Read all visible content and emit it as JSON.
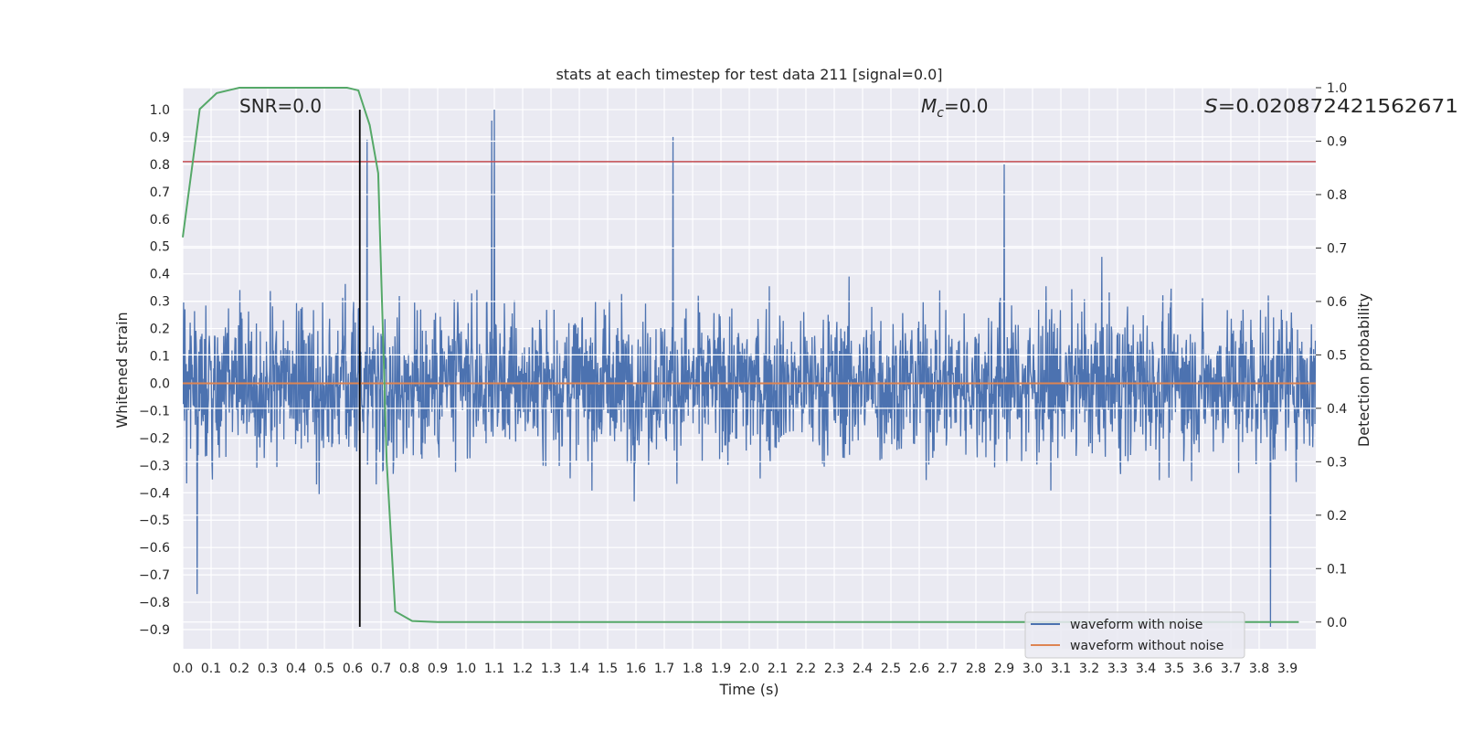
{
  "chart_data": {
    "type": "line",
    "title": "stats at each timestep for test data 211 [signal=0.0]",
    "xlabel": "Time (s)",
    "ylabel": "Whitened strain",
    "ylabel_right": "Detection probability",
    "xlim": [
      0.0,
      4.0
    ],
    "ylim": [
      -0.97,
      1.08
    ],
    "ylim_right": [
      -0.05,
      1.0
    ],
    "x_ticks": [
      0.0,
      0.1,
      0.2,
      0.3,
      0.4,
      0.5,
      0.6,
      0.7,
      0.8,
      0.9,
      1.0,
      1.1,
      1.2,
      1.3,
      1.4,
      1.5,
      1.6,
      1.7,
      1.8,
      1.9,
      2.0,
      2.1,
      2.2,
      2.3,
      2.4,
      2.5,
      2.6,
      2.7,
      2.8,
      2.9,
      3.0,
      3.1,
      3.2,
      3.3,
      3.4,
      3.5,
      3.6,
      3.7,
      3.8,
      3.9
    ],
    "x_tick_labels": [
      "0.0",
      "0.1",
      "0.2",
      "0.3",
      "0.4",
      "0.5",
      "0.6",
      "0.7",
      "0.8",
      "0.9",
      "1.0",
      "1.1",
      "1.2",
      "1.3",
      "1.4",
      "1.5",
      "1.6",
      "1.7",
      "1.8",
      "1.9",
      "2.0",
      "2.1",
      "2.2",
      "2.3",
      "2.4",
      "2.5",
      "2.6",
      "2.7",
      "2.8",
      "2.9",
      "3.0",
      "3.1",
      "3.2",
      "3.3",
      "3.4",
      "3.5",
      "3.6",
      "3.7",
      "3.8",
      "3.9"
    ],
    "y_ticks": [
      1.0,
      0.9,
      0.8,
      0.7,
      0.6,
      0.5,
      0.4,
      0.3,
      0.2,
      0.1,
      0.0,
      -0.1,
      -0.2,
      -0.3,
      -0.4,
      -0.5,
      -0.6,
      -0.7,
      -0.8,
      -0.9
    ],
    "y_tick_labels": [
      "1.0",
      "0.9",
      "0.8",
      "0.7",
      "0.6",
      "0.5",
      "0.4",
      "0.3",
      "0.2",
      "0.1",
      "0.0",
      "−0.1",
      "−0.2",
      "−0.3",
      "−0.4",
      "−0.5",
      "−0.6",
      "−0.7",
      "−0.8",
      "−0.9"
    ],
    "y_right_ticks": [
      1.0,
      0.9,
      0.8,
      0.7,
      0.6,
      0.5,
      0.4,
      0.3,
      0.2,
      0.1,
      0.0
    ],
    "y_right_tick_labels": [
      "1.0",
      "0.9",
      "0.8",
      "0.7",
      "0.6",
      "0.5",
      "0.4",
      "0.3",
      "0.2",
      "0.1",
      "0.0"
    ],
    "series": [
      {
        "name": "waveform with noise",
        "color": "#4c72b0",
        "kind": "noise",
        "approx_range": [
          -0.89,
          1.0
        ],
        "peaks": [
          [
            1.1,
            1.0
          ],
          [
            1.09,
            0.96
          ],
          [
            1.73,
            0.9
          ],
          [
            0.65,
            0.89
          ],
          [
            2.9,
            0.8
          ],
          [
            3.84,
            -0.89
          ],
          [
            0.05,
            -0.77
          ]
        ]
      },
      {
        "name": "waveform without noise",
        "color": "#dd8452",
        "x": [
          0.0,
          4.0
        ],
        "y": [
          0.0,
          0.0
        ]
      },
      {
        "name": "detection probability",
        "color": "#55a868",
        "axis": "right",
        "x": [
          0.0,
          0.06,
          0.12,
          0.2,
          0.3,
          0.4,
          0.5,
          0.58,
          0.62,
          0.66,
          0.69,
          0.72,
          0.75,
          0.81,
          0.9,
          1.2,
          2.0,
          2.5,
          3.0,
          3.5,
          3.8,
          3.94
        ],
        "y": [
          0.72,
          0.96,
          0.99,
          1.0,
          1.0,
          1.0,
          1.0,
          1.0,
          0.995,
          0.93,
          0.84,
          0.3,
          0.02,
          0.002,
          0.0,
          0.0,
          0.0,
          0.0,
          0.0,
          0.0,
          0.0,
          0.0
        ]
      }
    ],
    "threshold_line": {
      "color": "#c44e52",
      "y": 0.81
    },
    "event_marker": {
      "color": "#000000",
      "x": 0.625
    },
    "annotations": [
      {
        "text": "SNR=0.0"
      },
      {
        "text_main": "M",
        "text_sub": "c",
        "text_rest": "=0.0"
      },
      {
        "text_main": "S",
        "text_rest": "=0.020872421562671"
      }
    ],
    "legend": {
      "position": "lower-right",
      "entries": [
        "waveform with noise",
        "waveform without noise"
      ]
    }
  }
}
